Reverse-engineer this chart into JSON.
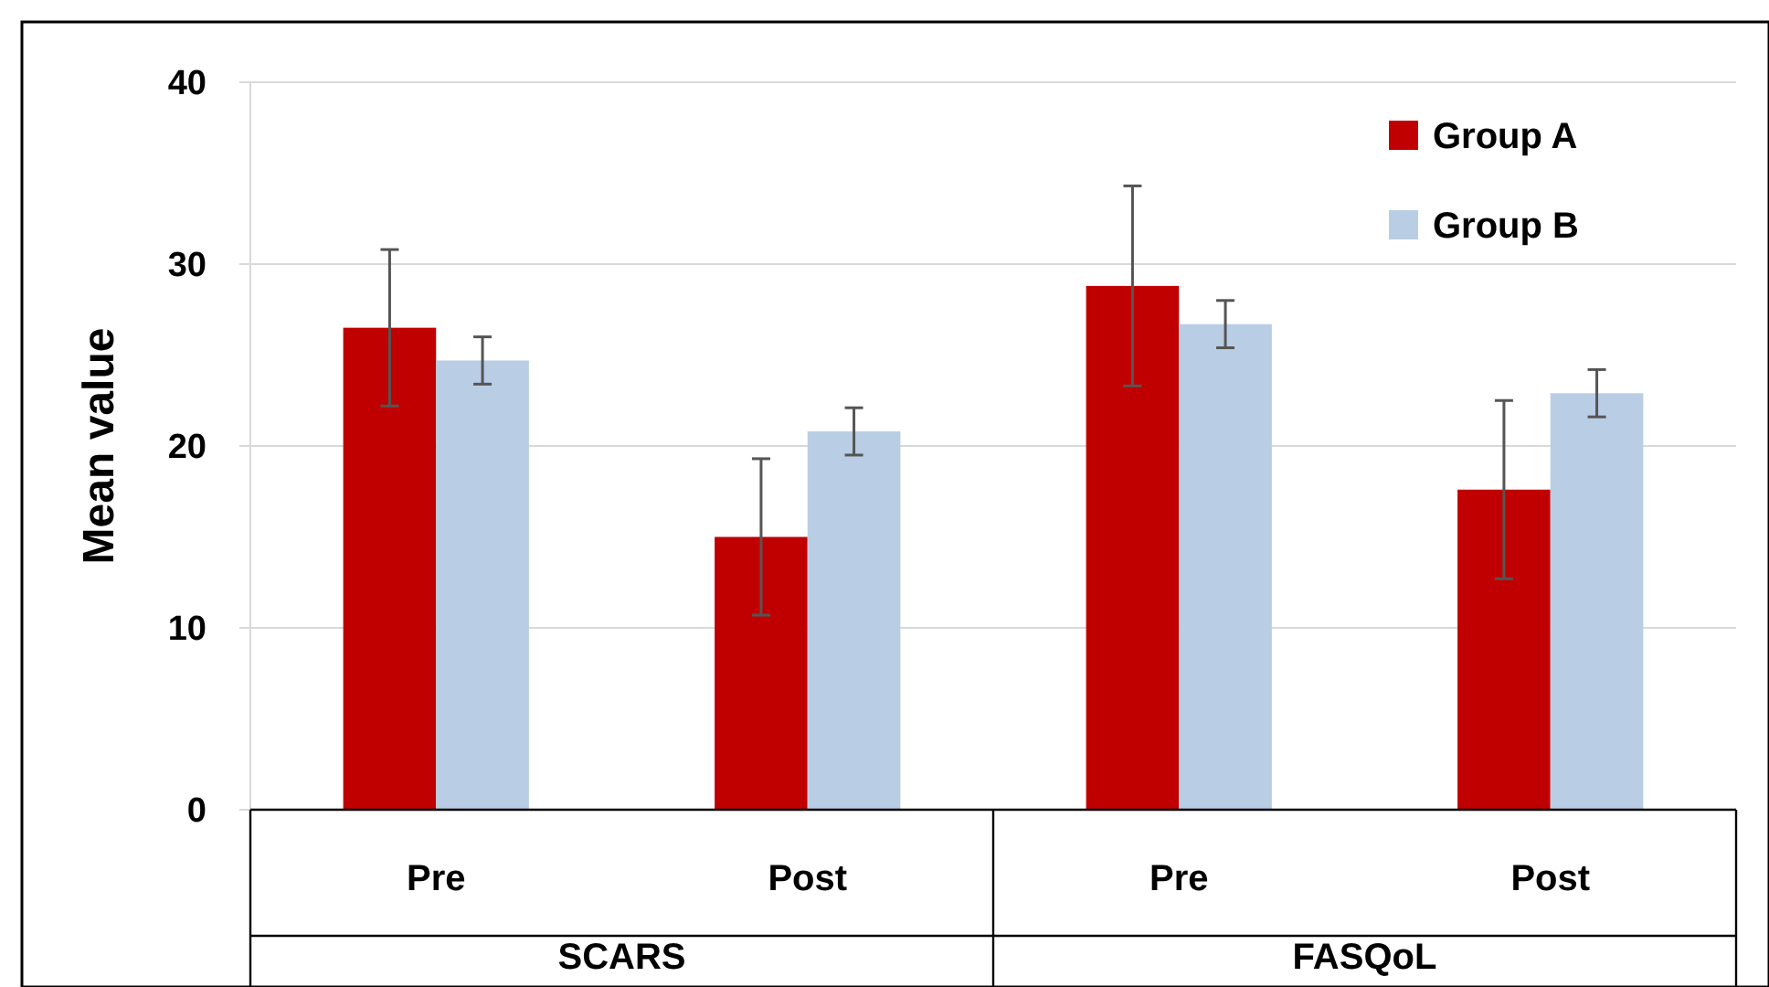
{
  "chart_data": {
    "type": "bar",
    "ylabel": "Mean value",
    "categories": [
      "Pre",
      "Post",
      "Pre",
      "Post"
    ],
    "series": [
      {
        "name": "Group A",
        "color": "#c00000",
        "values": [
          26.5,
          15.0,
          28.8,
          17.6
        ],
        "errors": [
          4.3,
          4.3,
          5.5,
          4.9
        ]
      },
      {
        "name": "Group B",
        "color": "#b9cde5",
        "values": [
          24.7,
          20.8,
          26.7,
          22.9
        ],
        "errors": [
          1.3,
          1.3,
          1.3,
          1.3
        ]
      }
    ],
    "annotations": [
      "SCARS",
      "FASQoL"
    ],
    "ylim": [
      0,
      40
    ],
    "yticks": [
      0,
      10,
      20,
      30,
      40
    ],
    "grid": "y",
    "legend": "top right"
  }
}
